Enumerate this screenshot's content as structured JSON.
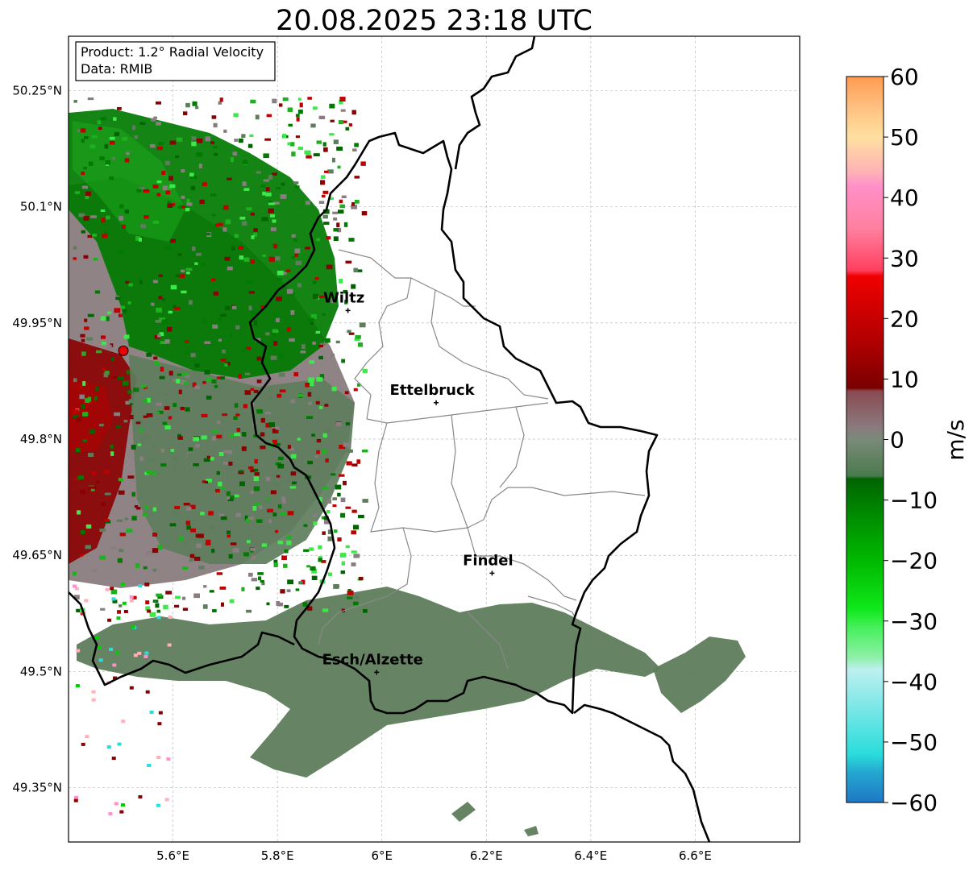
{
  "title": "20.08.2025 23:18 UTC",
  "info": {
    "product": "Product: 1.2° Radial Velocity",
    "data": "Data: RMIB"
  },
  "map_extent": {
    "lon_min": 5.4,
    "lon_max": 6.8,
    "lat_min": 49.28,
    "lat_max": 50.32
  },
  "lon_ticks": [
    {
      "value": 5.6,
      "label": "5.6°E"
    },
    {
      "value": 5.8,
      "label": "5.8°E"
    },
    {
      "value": 6.0,
      "label": "6°E"
    },
    {
      "value": 6.2,
      "label": "6.2°E"
    },
    {
      "value": 6.4,
      "label": "6.4°E"
    },
    {
      "value": 6.6,
      "label": "6.6°E"
    }
  ],
  "lat_ticks": [
    {
      "value": 50.25,
      "label": "50.25°N"
    },
    {
      "value": 50.1,
      "label": "50.1°N"
    },
    {
      "value": 49.95,
      "label": "49.95°N"
    },
    {
      "value": 49.8,
      "label": "49.8°N"
    },
    {
      "value": 49.65,
      "label": "49.65°N"
    },
    {
      "value": 49.5,
      "label": "49.5°N"
    },
    {
      "value": 49.35,
      "label": "49.35°N"
    }
  ],
  "cities": [
    {
      "name": "Wiltz",
      "lon": 5.935,
      "lat": 49.966
    },
    {
      "name": "Ettelbruck",
      "lon": 6.104,
      "lat": 49.847
    },
    {
      "name": "Findel",
      "lon": 6.211,
      "lat": 49.627
    },
    {
      "name": "Esch/Alzette",
      "lon": 5.99,
      "lat": 49.499
    }
  ],
  "radar_site": {
    "lon": 5.505,
    "lat": 49.914
  },
  "colorbar": {
    "label": "m/s",
    "min": -60,
    "max": 60,
    "ticks": [
      {
        "value": 60,
        "label": "60"
      },
      {
        "value": 50,
        "label": "50"
      },
      {
        "value": 40,
        "label": "40"
      },
      {
        "value": 30,
        "label": "30"
      },
      {
        "value": 20,
        "label": "20"
      },
      {
        "value": 10,
        "label": "10"
      },
      {
        "value": 0,
        "label": "0"
      },
      {
        "value": -10,
        "label": "−10"
      },
      {
        "value": -20,
        "label": "−20"
      },
      {
        "value": -30,
        "label": "−30"
      },
      {
        "value": -40,
        "label": "−40"
      },
      {
        "value": -50,
        "label": "−50"
      },
      {
        "value": -60,
        "label": "−60"
      }
    ],
    "stops": [
      {
        "value": -60,
        "color": "#1f77c4"
      },
      {
        "value": -55,
        "color": "#24a8d0"
      },
      {
        "value": -52,
        "color": "#2adcdc"
      },
      {
        "value": -45,
        "color": "#74e6e6"
      },
      {
        "value": -38,
        "color": "#bdf0f0"
      },
      {
        "value": -36,
        "color": "#8ef0a8"
      },
      {
        "value": -31,
        "color": "#45f05a"
      },
      {
        "value": -28,
        "color": "#0fe81a"
      },
      {
        "value": -20,
        "color": "#00b800"
      },
      {
        "value": -12,
        "color": "#008800"
      },
      {
        "value": -6.5,
        "color": "#006400"
      },
      {
        "value": -6,
        "color": "#4a7a4e"
      },
      {
        "value": 0,
        "color": "#7a8a78"
      },
      {
        "value": 2,
        "color": "#8a7a7e"
      },
      {
        "value": 8,
        "color": "#8a4a52"
      },
      {
        "value": 8.5,
        "color": "#7a0000"
      },
      {
        "value": 16,
        "color": "#b00000"
      },
      {
        "value": 27,
        "color": "#f00000"
      },
      {
        "value": 28,
        "color": "#ff4060"
      },
      {
        "value": 35,
        "color": "#ff80a0"
      },
      {
        "value": 42,
        "color": "#ff90c8"
      },
      {
        "value": 44,
        "color": "#ffb0b8"
      },
      {
        "value": 50,
        "color": "#ffe0a0"
      },
      {
        "value": 55,
        "color": "#ffc080"
      },
      {
        "value": 60,
        "color": "#ff9a50"
      }
    ]
  },
  "colors": {
    "border": "#000000",
    "cantons": "#888888",
    "grid": "#bbbbbb",
    "radar_marker": "#e60000",
    "echo_green_dark": "#007a00",
    "echo_green_mid": "#5e7d5c",
    "echo_red": "#8b0000",
    "echo_mauve": "#8a7a80"
  }
}
